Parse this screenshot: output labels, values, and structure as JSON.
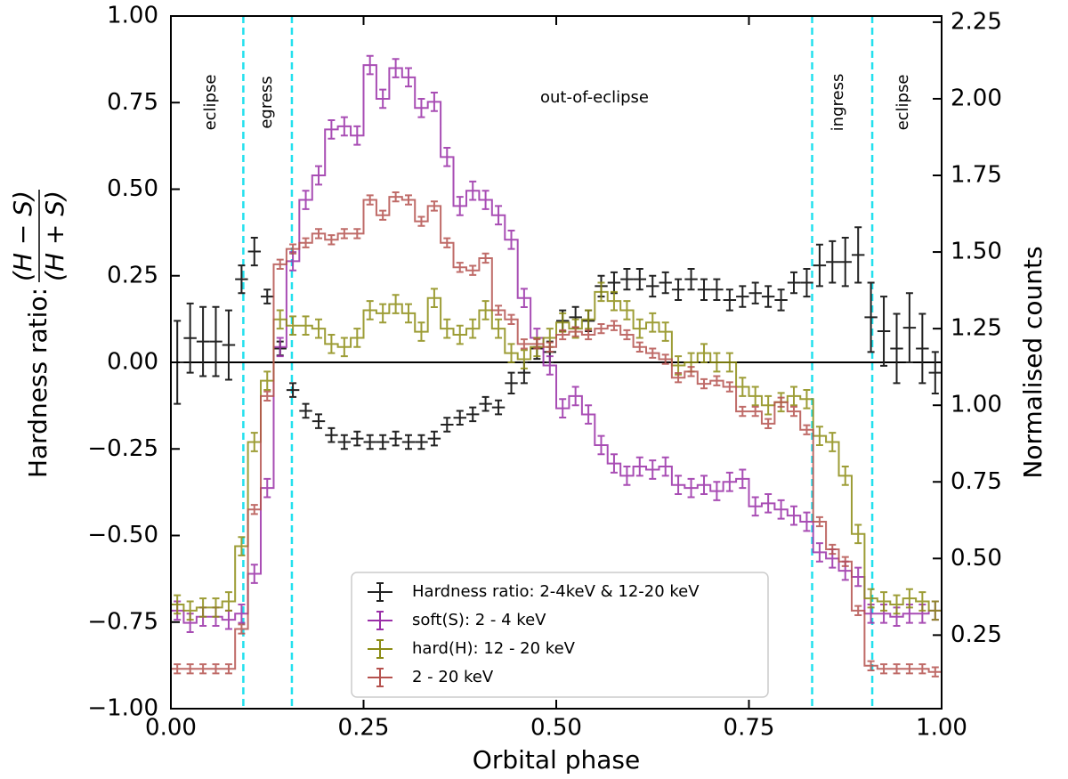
{
  "chart_data": {
    "type": "errorbar",
    "xlabel": "Orbital phase",
    "ylabel": {
      "prefix": "Hardness ratio: ",
      "numerator": "(H − S)",
      "denominator": "(H + S)"
    },
    "y2label": "Normalised counts",
    "xlim": [
      0,
      1
    ],
    "ylim": [
      -1,
      1
    ],
    "y2lim": [
      0.01,
      2.27
    ],
    "xticks": [
      {
        "value": 0,
        "label": "0.00"
      },
      {
        "value": 0.25,
        "label": "0.25"
      },
      {
        "value": 0.5,
        "label": "0.50"
      },
      {
        "value": 0.75,
        "label": "0.75"
      },
      {
        "value": 1,
        "label": "1.00"
      }
    ],
    "yticks": [
      {
        "value": -1,
        "label": "−1.00"
      },
      {
        "value": -0.75,
        "label": "−0.75"
      },
      {
        "value": -0.5,
        "label": "−0.50"
      },
      {
        "value": -0.25,
        "label": "−0.25"
      },
      {
        "value": 0,
        "label": "0.00"
      },
      {
        "value": 0.25,
        "label": "0.25"
      },
      {
        "value": 0.5,
        "label": "0.50"
      },
      {
        "value": 0.75,
        "label": "0.75"
      },
      {
        "value": 1,
        "label": "1.00"
      }
    ],
    "y2ticks": [
      0.25,
      {
        "value": 0.5,
        "label": "0.50"
      },
      0.75,
      {
        "value": 1,
        "label": "1.00"
      },
      1.25,
      {
        "value": 1.5,
        "label": "1.50"
      },
      1.75,
      {
        "value": 2,
        "label": "2.00"
      },
      2.25
    ],
    "hline": 0,
    "vlines": [
      0.094,
      0.157,
      0.832,
      0.91
    ],
    "vline_color": "#22e0ee",
    "annotations": [
      "eclipse",
      "egress",
      "out-of-eclipse",
      "ingress",
      "eclipse"
    ],
    "legend": "lower center",
    "x": [
      0.0083,
      0.025,
      0.0417,
      0.0583,
      0.075,
      0.0917,
      0.1083,
      0.125,
      0.1417,
      0.1583,
      0.175,
      0.1917,
      0.2083,
      0.225,
      0.2417,
      0.2583,
      0.275,
      0.2917,
      0.3083,
      0.325,
      0.3417,
      0.3583,
      0.375,
      0.3917,
      0.4083,
      0.425,
      0.4417,
      0.4583,
      0.475,
      0.4917,
      0.5083,
      0.525,
      0.5417,
      0.5583,
      0.575,
      0.5917,
      0.6083,
      0.625,
      0.6417,
      0.6583,
      0.675,
      0.6917,
      0.7083,
      0.725,
      0.7417,
      0.7583,
      0.775,
      0.7917,
      0.8083,
      0.825,
      0.8417,
      0.8583,
      0.875,
      0.8917,
      0.9083,
      0.925,
      0.9417,
      0.9583,
      0.975,
      0.9917
    ],
    "series": [
      {
        "name": "Hardness ratio: 2-4keV & 12-20 keV",
        "color": "#222222",
        "axis": "y",
        "values": [
          0.0,
          0.07,
          0.06,
          0.06,
          0.05,
          0.24,
          0.32,
          0.19,
          0.04,
          -0.08,
          -0.14,
          -0.17,
          -0.21,
          -0.23,
          -0.22,
          -0.23,
          -0.23,
          -0.22,
          -0.23,
          -0.23,
          -0.22,
          -0.18,
          -0.16,
          -0.15,
          -0.12,
          -0.13,
          -0.06,
          -0.03,
          0.04,
          0.03,
          0.12,
          0.13,
          0.12,
          0.22,
          0.23,
          0.24,
          0.24,
          0.22,
          0.23,
          0.21,
          0.24,
          0.21,
          0.21,
          0.18,
          0.19,
          0.2,
          0.19,
          0.18,
          0.23,
          0.23,
          0.28,
          0.29,
          0.29,
          0.31,
          0.13,
          0.09,
          0.04,
          0.1,
          0.04,
          -0.03
        ],
        "errors": [
          0.12,
          0.1,
          0.1,
          0.1,
          0.1,
          0.04,
          0.04,
          0.02,
          0.02,
          0.02,
          0.02,
          0.02,
          0.02,
          0.02,
          0.02,
          0.02,
          0.02,
          0.02,
          0.02,
          0.02,
          0.02,
          0.02,
          0.02,
          0.02,
          0.02,
          0.02,
          0.03,
          0.03,
          0.03,
          0.03,
          0.03,
          0.03,
          0.03,
          0.03,
          0.03,
          0.03,
          0.03,
          0.03,
          0.03,
          0.03,
          0.03,
          0.03,
          0.03,
          0.03,
          0.03,
          0.03,
          0.03,
          0.03,
          0.03,
          0.04,
          0.06,
          0.06,
          0.07,
          0.08,
          0.1,
          0.1,
          0.1,
          0.1,
          0.1,
          0.06
        ]
      },
      {
        "name": "soft(S): 2 - 4 keV",
        "color": "#9a2fa8",
        "axis": "y2",
        "drawstyle": "steps-mid",
        "error": 0.03,
        "values": [
          0.33,
          0.29,
          0.31,
          0.31,
          0.3,
          0.32,
          0.45,
          0.73,
          1.19,
          1.47,
          1.67,
          1.75,
          1.9,
          1.91,
          1.88,
          2.11,
          2.0,
          2.1,
          2.07,
          1.97,
          1.99,
          1.81,
          1.65,
          1.7,
          1.67,
          1.62,
          1.54,
          1.35,
          1.22,
          1.13,
          0.99,
          1.03,
          0.97,
          0.87,
          0.81,
          0.77,
          0.8,
          0.79,
          0.8,
          0.74,
          0.73,
          0.74,
          0.72,
          0.75,
          0.76,
          0.67,
          0.68,
          0.66,
          0.64,
          0.62,
          0.52,
          0.5,
          0.46,
          0.44,
          0.32,
          0.32,
          0.31,
          0.32,
          0.32,
          0.33
        ]
      },
      {
        "name": "hard(H): 12 - 20 keV",
        "color": "#8c8c14",
        "axis": "y2",
        "drawstyle": "steps-mid",
        "error": 0.03,
        "values": [
          0.35,
          0.33,
          0.34,
          0.34,
          0.36,
          0.54,
          0.88,
          1.08,
          1.28,
          1.26,
          1.26,
          1.25,
          1.2,
          1.19,
          1.22,
          1.31,
          1.3,
          1.33,
          1.3,
          1.24,
          1.35,
          1.25,
          1.23,
          1.25,
          1.31,
          1.25,
          1.17,
          1.15,
          1.19,
          1.22,
          1.27,
          1.25,
          1.28,
          1.37,
          1.34,
          1.31,
          1.25,
          1.27,
          1.24,
          1.13,
          1.14,
          1.17,
          1.14,
          1.14,
          1.06,
          1.03,
          1.0,
          1.01,
          1.03,
          1.02,
          0.9,
          0.88,
          0.77,
          0.58,
          0.37,
          0.36,
          0.35,
          0.37,
          0.36,
          0.33
        ]
      },
      {
        "name": "2 - 20 keV",
        "color": "#b5524e",
        "axis": "y2",
        "drawstyle": "steps-mid",
        "error": 0.015,
        "values": [
          0.14,
          0.14,
          0.14,
          0.14,
          0.14,
          0.27,
          0.66,
          1.03,
          1.46,
          1.51,
          1.53,
          1.56,
          1.54,
          1.56,
          1.56,
          1.67,
          1.62,
          1.68,
          1.67,
          1.6,
          1.65,
          1.53,
          1.45,
          1.44,
          1.48,
          1.31,
          1.28,
          1.2,
          1.2,
          1.19,
          1.23,
          1.24,
          1.23,
          1.25,
          1.26,
          1.23,
          1.19,
          1.17,
          1.15,
          1.09,
          1.11,
          1.07,
          1.08,
          1.06,
          0.98,
          0.98,
          0.94,
          1.01,
          0.98,
          0.92,
          0.62,
          0.53,
          0.49,
          0.33,
          0.15,
          0.14,
          0.14,
          0.14,
          0.14,
          0.13
        ]
      }
    ]
  }
}
